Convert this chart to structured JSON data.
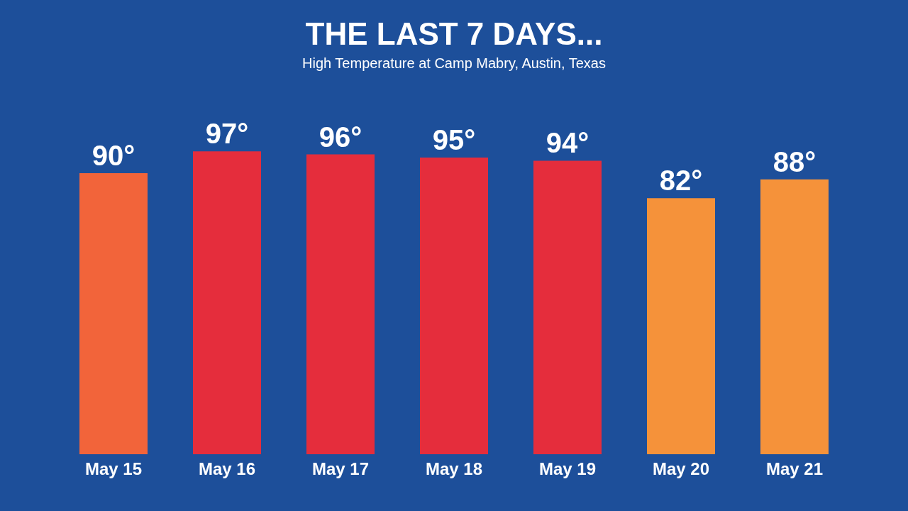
{
  "chart_data": {
    "type": "bar",
    "title": "THE LAST 7 DAYS...",
    "subtitle": "High Temperature at Camp Mabry, Austin, Texas",
    "categories": [
      "May 15",
      "May 16",
      "May 17",
      "May 18",
      "May 19",
      "May 20",
      "May 21"
    ],
    "values": [
      90,
      97,
      96,
      95,
      94,
      82,
      88
    ],
    "value_labels": [
      "90°",
      "97°",
      "96°",
      "95°",
      "94°",
      "82°",
      "88°"
    ],
    "colors": [
      "#f2643a",
      "#e52d3c",
      "#e52d3c",
      "#e52d3c",
      "#e52d3c",
      "#f5923a",
      "#f5923a"
    ],
    "grid": false
  }
}
